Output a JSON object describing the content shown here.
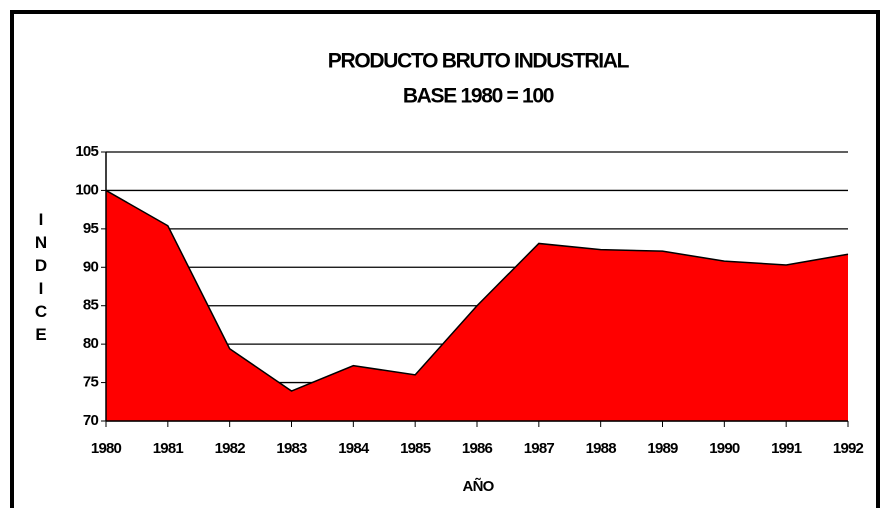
{
  "chart_data": {
    "type": "area",
    "title": "PRODUCTO BRUTO INDUSTRIAL",
    "subtitle": "BASE 1980 = 100",
    "x_label": "AÑO",
    "y_label": "INDICE",
    "categories": [
      "1980",
      "1981",
      "1982",
      "1983",
      "1984",
      "1985",
      "1986",
      "1987",
      "1988",
      "1989",
      "1990",
      "1991",
      "1992"
    ],
    "values": [
      100,
      95.4,
      79.4,
      73.9,
      77.2,
      76.0,
      85.0,
      93.1,
      92.3,
      92.1,
      90.8,
      90.3,
      91.7
    ],
    "color": "#ff0000",
    "ylim": [
      70,
      105
    ],
    "yticks": [
      70,
      75,
      80,
      85,
      90,
      95,
      100,
      105
    ],
    "grid": true
  }
}
